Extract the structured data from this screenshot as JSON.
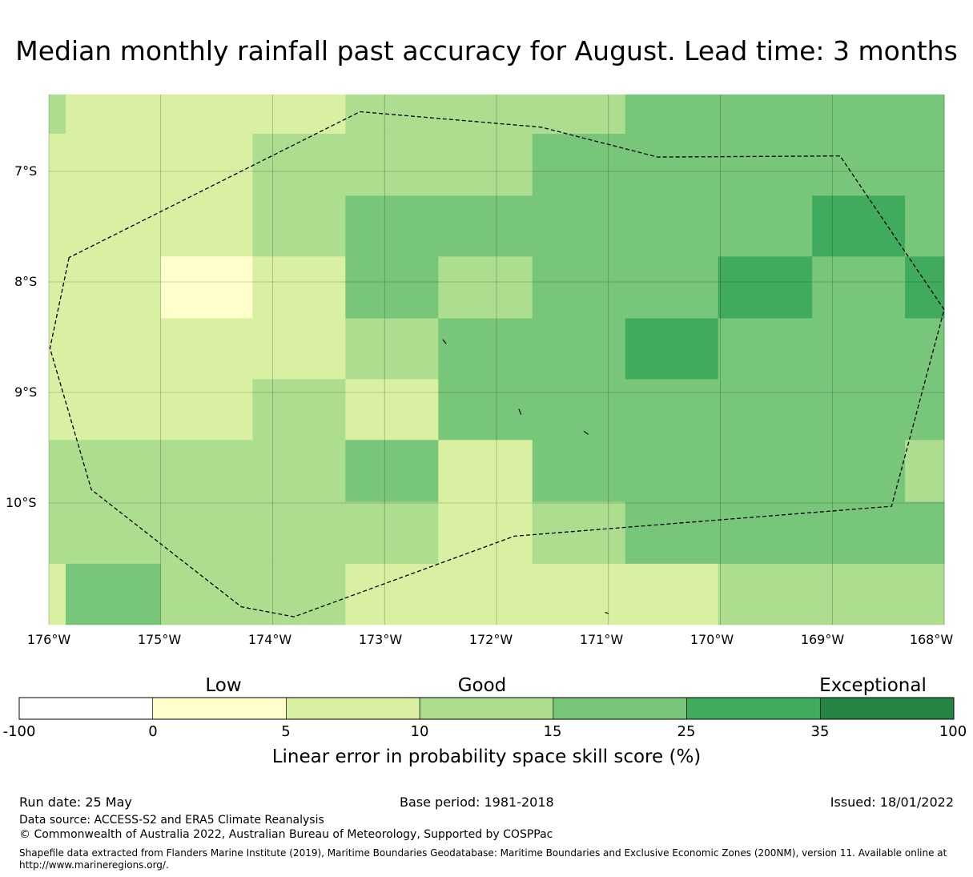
{
  "title": "Median monthly rainfall past accuracy for August. Lead time: 3 months",
  "map": {
    "lon_range": [
      -176.0,
      -168.0
    ],
    "lat_range": [
      -11.1,
      -6.3
    ],
    "lat_labels": [
      "7°S",
      "8°S",
      "9°S",
      "10°S"
    ],
    "lon_labels": [
      "176°W",
      "175°W",
      "174°W",
      "173°W",
      "172°W",
      "171°W",
      "170°W",
      "169°W",
      "168°W"
    ],
    "grid_lines": true,
    "eez_boundary_style": "dashed",
    "boundary": [
      [
        -175.82,
        -7.78
      ],
      [
        -175.99,
        -8.6
      ],
      [
        -175.62,
        -9.88
      ],
      [
        -174.28,
        -10.94
      ],
      [
        -173.81,
        -11.03
      ],
      [
        -171.84,
        -10.3
      ],
      [
        -168.47,
        -10.03
      ],
      [
        -168.0,
        -8.25
      ],
      [
        -168.93,
        -6.86
      ],
      [
        -170.56,
        -6.87
      ],
      [
        -171.6,
        -6.6
      ],
      [
        -173.22,
        -6.46
      ],
      [
        -175.82,
        -7.78
      ]
    ],
    "islands": [
      [
        [
          -172.48,
          -8.52
        ],
        [
          -172.45,
          -8.56
        ]
      ],
      [
        [
          -171.8,
          -9.15
        ],
        [
          -171.78,
          -9.2
        ]
      ],
      [
        [
          -171.22,
          -9.35
        ],
        [
          -171.18,
          -9.38
        ]
      ],
      [
        [
          -171.03,
          -10.99
        ],
        [
          -171.0,
          -11.0
        ]
      ]
    ],
    "cells": [
      {
        "lon": [
          -176.0,
          -175.85
        ],
        "lat": [
          -6.66,
          -6.3
        ],
        "cat": 3
      },
      {
        "lon": [
          -175.85,
          -173.35
        ],
        "lat": [
          -6.66,
          -6.3
        ],
        "cat": 2
      },
      {
        "lon": [
          -173.35,
          -170.85
        ],
        "lat": [
          -6.66,
          -6.3
        ],
        "cat": 3
      },
      {
        "lon": [
          -170.85,
          -168.0
        ],
        "lat": [
          -6.66,
          -6.3
        ],
        "cat": 4
      },
      {
        "lon": [
          -176.0,
          -174.18
        ],
        "lat": [
          -7.22,
          -6.66
        ],
        "cat": 2
      },
      {
        "lon": [
          -174.18,
          -171.68
        ],
        "lat": [
          -7.22,
          -6.66
        ],
        "cat": 3
      },
      {
        "lon": [
          -171.68,
          -168.0
        ],
        "lat": [
          -7.22,
          -6.66
        ],
        "cat": 4
      },
      {
        "lon": [
          -176.0,
          -174.18
        ],
        "lat": [
          -7.77,
          -7.22
        ],
        "cat": 2
      },
      {
        "lon": [
          -174.18,
          -173.35
        ],
        "lat": [
          -7.77,
          -7.22
        ],
        "cat": 3
      },
      {
        "lon": [
          -173.35,
          -169.18
        ],
        "lat": [
          -7.77,
          -7.22
        ],
        "cat": 4
      },
      {
        "lon": [
          -169.18,
          -168.35
        ],
        "lat": [
          -7.77,
          -7.22
        ],
        "cat": 5
      },
      {
        "lon": [
          -168.35,
          -168.0
        ],
        "lat": [
          -7.77,
          -7.22
        ],
        "cat": 4
      },
      {
        "lon": [
          -176.0,
          -175.0
        ],
        "lat": [
          -8.33,
          -7.77
        ],
        "cat": 2
      },
      {
        "lon": [
          -175.0,
          -174.18
        ],
        "lat": [
          -8.33,
          -7.77
        ],
        "cat": 1
      },
      {
        "lon": [
          -174.18,
          -173.35
        ],
        "lat": [
          -8.33,
          -7.77
        ],
        "cat": 2
      },
      {
        "lon": [
          -173.35,
          -172.52
        ],
        "lat": [
          -8.33,
          -7.77
        ],
        "cat": 4
      },
      {
        "lon": [
          -172.52,
          -171.68
        ],
        "lat": [
          -8.33,
          -7.77
        ],
        "cat": 3
      },
      {
        "lon": [
          -171.68,
          -170.02
        ],
        "lat": [
          -8.33,
          -7.77
        ],
        "cat": 4
      },
      {
        "lon": [
          -170.02,
          -169.18
        ],
        "lat": [
          -8.33,
          -7.77
        ],
        "cat": 5
      },
      {
        "lon": [
          -169.18,
          -168.35
        ],
        "lat": [
          -8.33,
          -7.77
        ],
        "cat": 4
      },
      {
        "lon": [
          -168.35,
          -168.0
        ],
        "lat": [
          -8.33,
          -7.77
        ],
        "cat": 5
      },
      {
        "lon": [
          -176.0,
          -173.35
        ],
        "lat": [
          -8.88,
          -8.33
        ],
        "cat": 2
      },
      {
        "lon": [
          -173.35,
          -172.52
        ],
        "lat": [
          -8.88,
          -8.33
        ],
        "cat": 3
      },
      {
        "lon": [
          -172.52,
          -170.85
        ],
        "lat": [
          -8.88,
          -8.33
        ],
        "cat": 4
      },
      {
        "lon": [
          -170.85,
          -170.02
        ],
        "lat": [
          -8.88,
          -8.33
        ],
        "cat": 5
      },
      {
        "lon": [
          -170.02,
          -168.0
        ],
        "lat": [
          -8.88,
          -8.33
        ],
        "cat": 4
      },
      {
        "lon": [
          -176.0,
          -174.18
        ],
        "lat": [
          -9.43,
          -8.88
        ],
        "cat": 2
      },
      {
        "lon": [
          -174.18,
          -173.35
        ],
        "lat": [
          -9.43,
          -8.88
        ],
        "cat": 3
      },
      {
        "lon": [
          -173.35,
          -172.52
        ],
        "lat": [
          -9.43,
          -8.88
        ],
        "cat": 2
      },
      {
        "lon": [
          -172.52,
          -168.0
        ],
        "lat": [
          -9.43,
          -8.88
        ],
        "cat": 4
      },
      {
        "lon": [
          -176.0,
          -173.35
        ],
        "lat": [
          -9.99,
          -9.43
        ],
        "cat": 3
      },
      {
        "lon": [
          -173.35,
          -172.52
        ],
        "lat": [
          -9.99,
          -9.43
        ],
        "cat": 4
      },
      {
        "lon": [
          -172.52,
          -171.68
        ],
        "lat": [
          -9.99,
          -9.43
        ],
        "cat": 2
      },
      {
        "lon": [
          -171.68,
          -168.35
        ],
        "lat": [
          -9.99,
          -9.43
        ],
        "cat": 4
      },
      {
        "lon": [
          -168.35,
          -168.0
        ],
        "lat": [
          -9.99,
          -9.43
        ],
        "cat": 3
      },
      {
        "lon": [
          -176.0,
          -172.52
        ],
        "lat": [
          -10.55,
          -9.99
        ],
        "cat": 3
      },
      {
        "lon": [
          -172.52,
          -171.68
        ],
        "lat": [
          -10.55,
          -9.99
        ],
        "cat": 2
      },
      {
        "lon": [
          -171.68,
          -170.85
        ],
        "lat": [
          -10.55,
          -9.99
        ],
        "cat": 3
      },
      {
        "lon": [
          -170.85,
          -168.0
        ],
        "lat": [
          -10.55,
          -9.99
        ],
        "cat": 4
      },
      {
        "lon": [
          -176.0,
          -175.85
        ],
        "lat": [
          -11.1,
          -10.55
        ],
        "cat": 2
      },
      {
        "lon": [
          -175.85,
          -175.0
        ],
        "lat": [
          -11.1,
          -10.55
        ],
        "cat": 4
      },
      {
        "lon": [
          -175.0,
          -173.35
        ],
        "lat": [
          -11.1,
          -10.55
        ],
        "cat": 3
      },
      {
        "lon": [
          -173.35,
          -170.02
        ],
        "lat": [
          -11.1,
          -10.55
        ],
        "cat": 2
      },
      {
        "lon": [
          -170.02,
          -168.0
        ],
        "lat": [
          -11.1,
          -10.55
        ],
        "cat": 3
      }
    ]
  },
  "colorbar": {
    "colors": [
      "#ffffff",
      "#ffffcc",
      "#d9f0a3",
      "#addd8e",
      "#78c679",
      "#41ab5d",
      "#238443"
    ],
    "ticks": [
      "-100",
      "0",
      "5",
      "10",
      "15",
      "25",
      "35",
      "100"
    ],
    "categories": {
      "low": "Low",
      "good": "Good",
      "exceptional": "Exceptional"
    },
    "label": "Linear error in probability space skill score (%)"
  },
  "footer": {
    "run_date": "Run date: 25 May",
    "base_period": "Base period: 1981-2018",
    "issued": "Issued: 18/01/2022",
    "data_source": "Data source: ACCESS-S2 and ERA5 Climate Reanalysis",
    "copyright": "© Commonwealth of Australia 2022, Australian Bureau of Meteorology, Supported by COSPPac",
    "shapefile_note": "Shapefile data extracted from Flanders Marine Institute (2019), Maritime Boundaries Geodatabase: Maritime Boundaries and Exclusive Economic Zones (200NM), version 11. Available online at http://www.marineregions.org/."
  }
}
